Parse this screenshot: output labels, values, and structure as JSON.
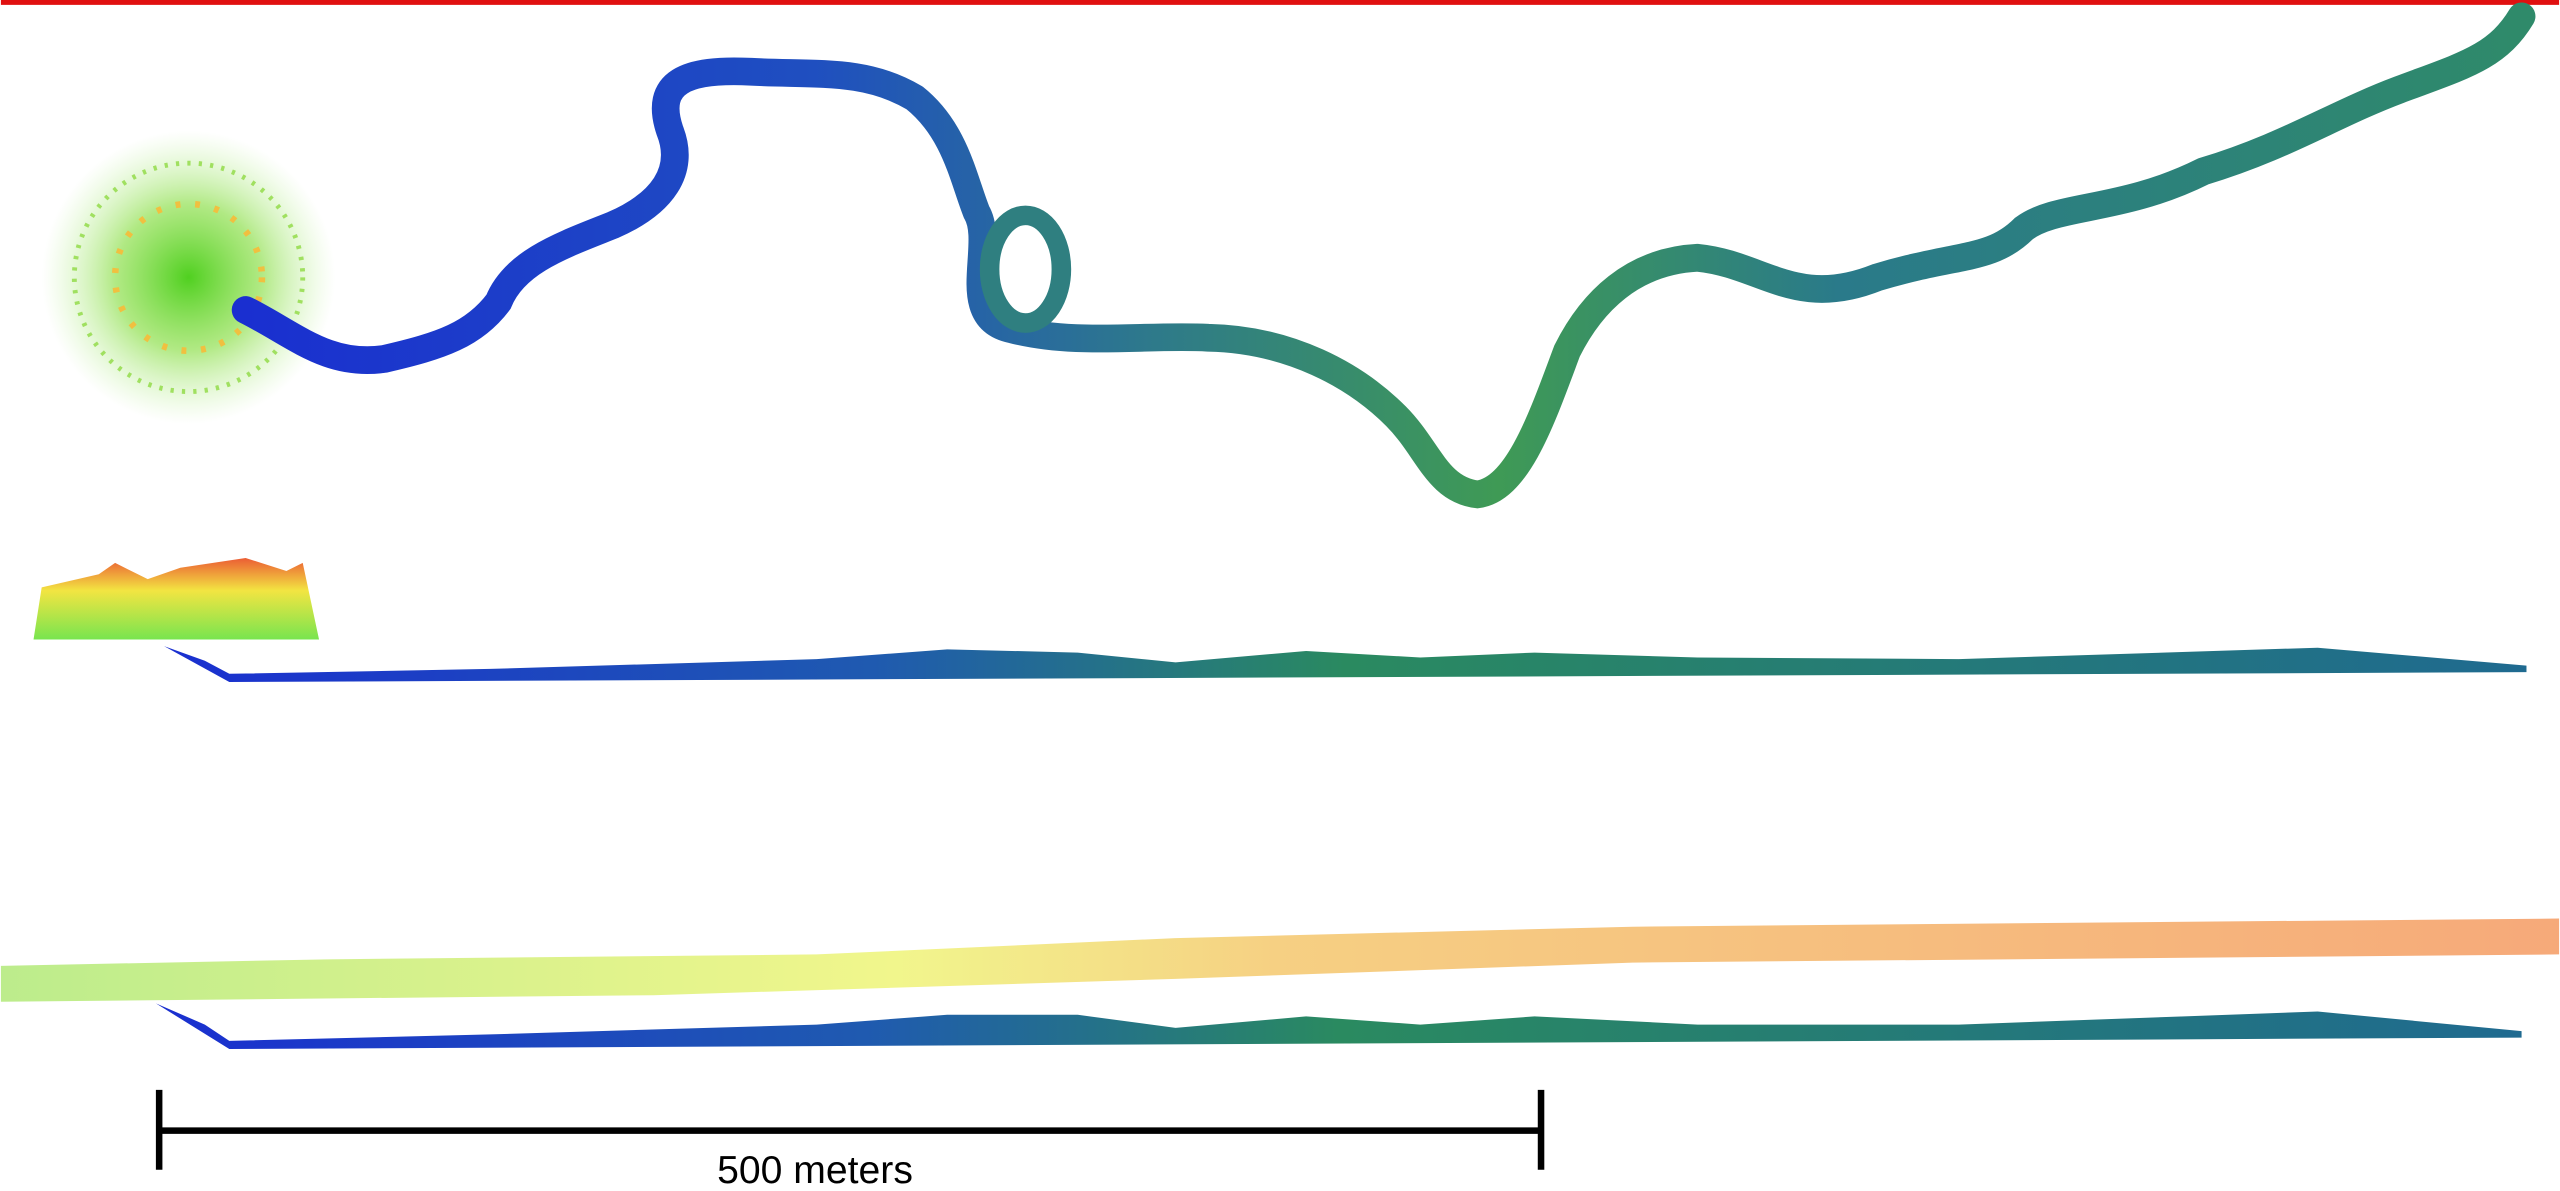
{
  "scale_bar": {
    "label": "500 meters"
  }
}
